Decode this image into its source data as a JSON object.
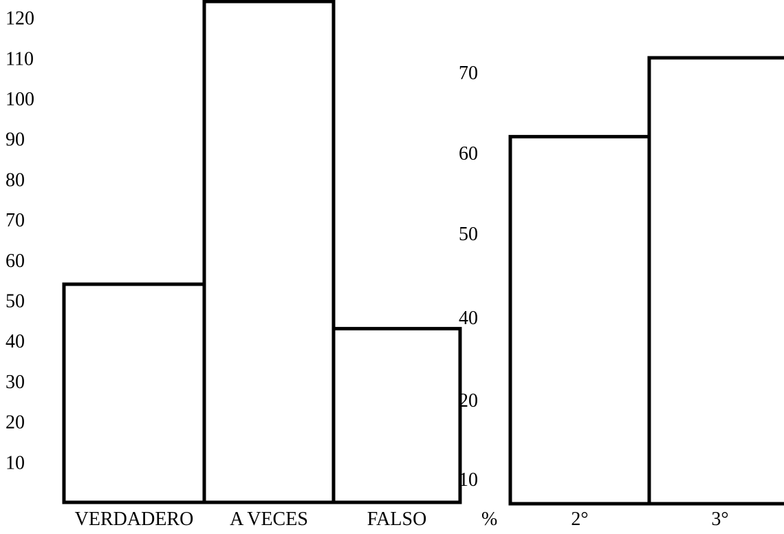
{
  "colors": {
    "background": "#ffffff",
    "bar_fill": "#ffffff",
    "bar_stroke": "#000000",
    "text": "#000000"
  },
  "chart_data": [
    {
      "type": "bar",
      "categories": [
        "VERDADERO",
        "A VECES",
        "FALSO"
      ],
      "values": [
        54,
        124,
        43
      ],
      "yticks": [
        10,
        20,
        30,
        40,
        50,
        60,
        70,
        80,
        90,
        100,
        110,
        120
      ],
      "title": "",
      "xlabel": "",
      "ylabel": "",
      "grid": false,
      "legend": "none"
    },
    {
      "type": "bar",
      "categories": [
        "2°",
        "3°"
      ],
      "values": [
        62,
        72
      ],
      "yticks": [
        10,
        20,
        40,
        50,
        60,
        70
      ],
      "title": "",
      "xlabel": "",
      "ylabel": "%",
      "grid": false,
      "legend": "none"
    }
  ]
}
